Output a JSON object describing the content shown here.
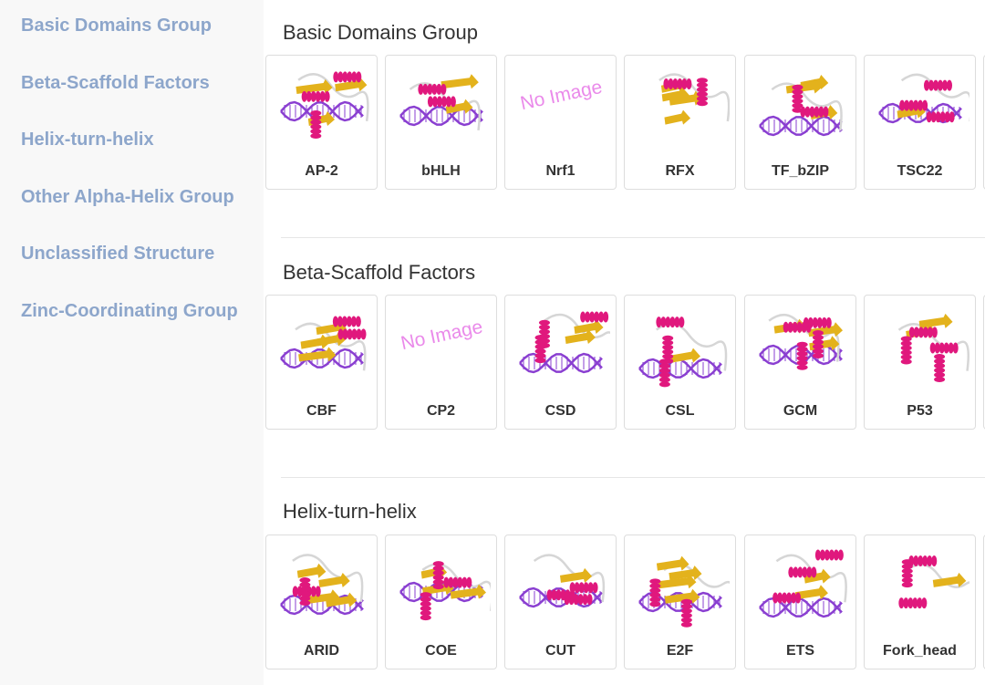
{
  "sidebar": {
    "items": [
      {
        "label": "Basic Domains Group"
      },
      {
        "label": "Beta-Scaffold Factors"
      },
      {
        "label": "Helix-turn-helix"
      },
      {
        "label": "Other Alpha-Helix Group"
      },
      {
        "label": "Unclassified Structure"
      },
      {
        "label": "Zinc-Coordinating Group"
      }
    ]
  },
  "no_image_text": "No Image",
  "colors": {
    "sidebar_link": "#8da6cb",
    "helix": "#e0187d",
    "dna": "#8a3fd1",
    "sheet": "#e3b21c",
    "no_image": "#ea8aea"
  },
  "sections": [
    {
      "title": "Basic Domains Group",
      "cards": [
        {
          "label": "AP-2",
          "image": "structure"
        },
        {
          "label": "bHLH",
          "image": "structure"
        },
        {
          "label": "Nrf1",
          "image": "none"
        },
        {
          "label": "RFX",
          "image": "structure"
        },
        {
          "label": "TF_bZIP",
          "image": "structure"
        },
        {
          "label": "TSC22",
          "image": "structure"
        }
      ]
    },
    {
      "title": "Beta-Scaffold Factors",
      "cards": [
        {
          "label": "CBF",
          "image": "structure"
        },
        {
          "label": "CP2",
          "image": "none"
        },
        {
          "label": "CSD",
          "image": "structure"
        },
        {
          "label": "CSL",
          "image": "structure"
        },
        {
          "label": "GCM",
          "image": "structure"
        },
        {
          "label": "P53",
          "image": "structure"
        }
      ]
    },
    {
      "title": "Helix-turn-helix",
      "cards": [
        {
          "label": "ARID",
          "image": "structure"
        },
        {
          "label": "COE",
          "image": "structure"
        },
        {
          "label": "CUT",
          "image": "structure"
        },
        {
          "label": "E2F",
          "image": "structure"
        },
        {
          "label": "ETS",
          "image": "structure"
        },
        {
          "label": "Fork_head",
          "image": "structure"
        }
      ]
    }
  ]
}
